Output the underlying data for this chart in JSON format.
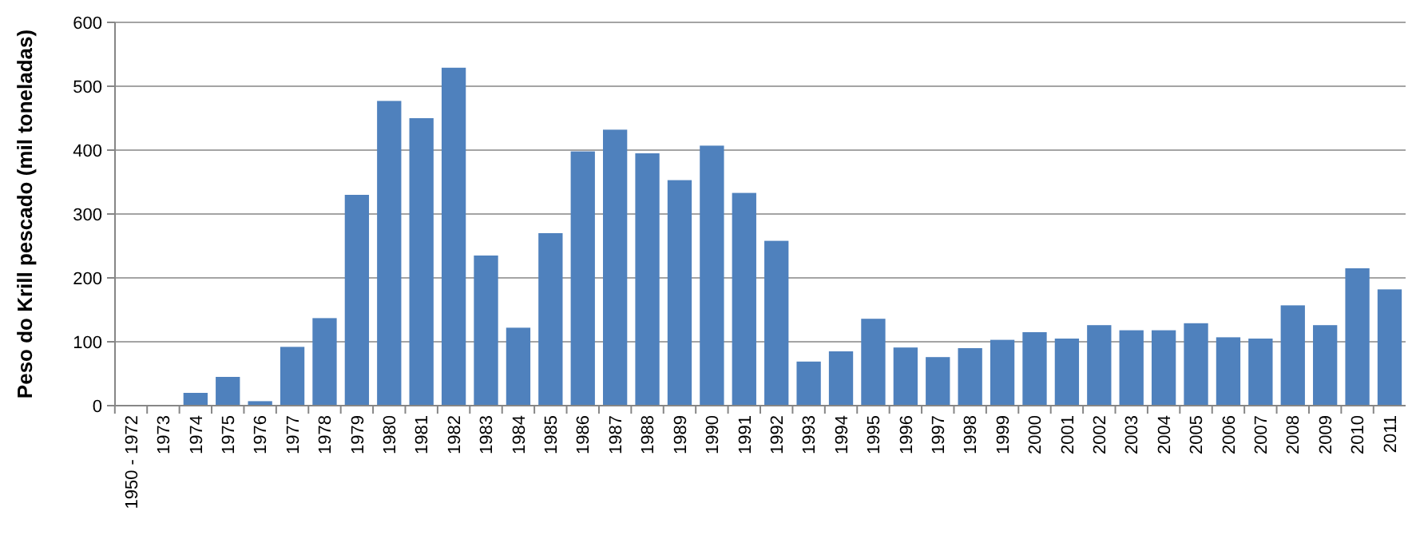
{
  "chart_data": {
    "type": "bar",
    "ylabel": "Peso do Krill pescado (mil toneladas)",
    "categories": [
      "1950 - 1972",
      "1973",
      "1974",
      "1975",
      "1976",
      "1977",
      "1978",
      "1979",
      "1980",
      "1981",
      "1982",
      "1983",
      "1984",
      "1985",
      "1986",
      "1987",
      "1988",
      "1989",
      "1990",
      "1991",
      "1992",
      "1993",
      "1994",
      "1995",
      "1996",
      "1997",
      "1998",
      "1999",
      "2000",
      "2001",
      "2002",
      "2003",
      "2004",
      "2005",
      "2006",
      "2007",
      "2008",
      "2009",
      "2010",
      "2011"
    ],
    "values": [
      0,
      0,
      20,
      45,
      7,
      92,
      137,
      330,
      477,
      450,
      529,
      235,
      122,
      270,
      398,
      432,
      395,
      353,
      407,
      333,
      258,
      69,
      85,
      136,
      91,
      76,
      90,
      103,
      115,
      105,
      126,
      118,
      118,
      129,
      107,
      105,
      157,
      126,
      215,
      182
    ],
    "color": "#4f81bd",
    "ylim": [
      0,
      600
    ],
    "yticks": [
      0,
      100,
      200,
      300,
      400,
      500,
      600
    ],
    "grid": "y"
  }
}
